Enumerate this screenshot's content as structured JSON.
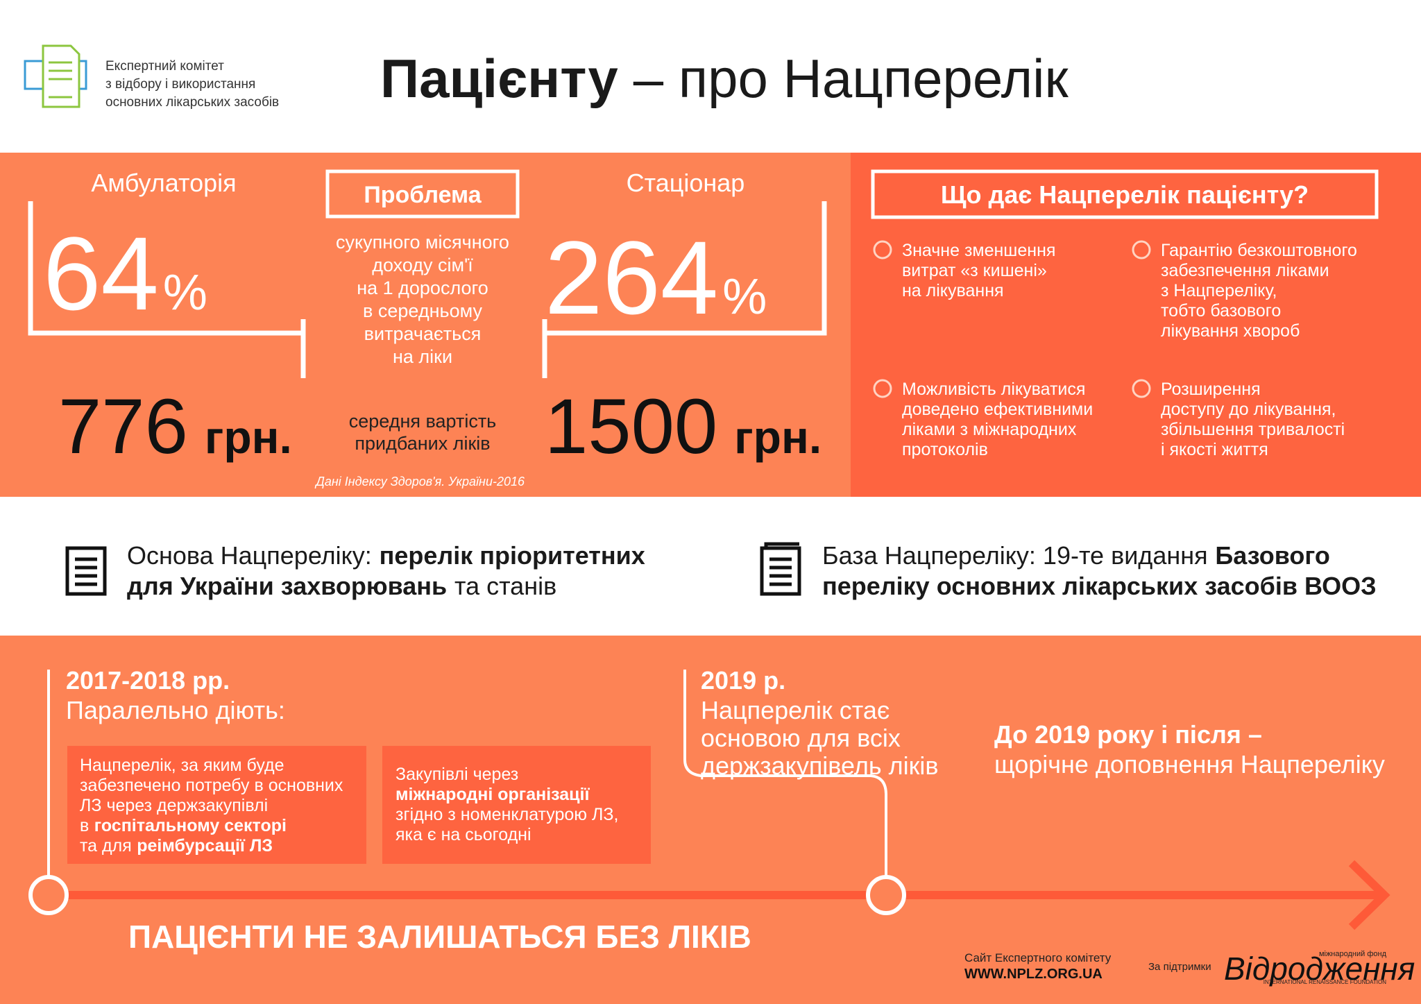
{
  "header": {
    "committee": [
      "Експертний комітет",
      "з відбору і використання",
      "основних лікарських засобів"
    ],
    "title_bold": "Пацієнту",
    "title_rest": "– про Нацперелік"
  },
  "stats": {
    "ambulatory": {
      "label": "Амбулаторія",
      "percent": "64",
      "percent_sign": "%",
      "cost": "776",
      "currency": "грн."
    },
    "stationary": {
      "label": "Стаціонар",
      "percent": "264",
      "percent_sign": "%",
      "cost": "1500",
      "currency": "грн."
    },
    "problem_title": "Проблема",
    "problem_text": [
      "сукупного місячного",
      "доходу сім'ї",
      "на 1 дорослого",
      "в середньому",
      "витрачається",
      "на ліки"
    ],
    "cost_caption": [
      "середня вартість",
      "придбаних ліків"
    ],
    "source": "Дані Індексу Здоров'я. України-2016"
  },
  "benefits": {
    "title": "Що дає Нацперелік пацієнту?",
    "items": [
      [
        "Значне зменшення",
        "витрат «з кишені»",
        "на лікування"
      ],
      [
        "Гарантію безкоштовного",
        "забезпечення ліками",
        "з Нацпереліку,",
        "тобто базового",
        "лікування хвороб"
      ],
      [
        "Можливість лікуватися",
        "доведено ефективними",
        "ліками з міжнародних",
        "протоколів"
      ],
      [
        "Розширення",
        "доступу до лікування,",
        "збільшення тривалості",
        "і якості життя"
      ]
    ]
  },
  "basis": [
    {
      "lines": [
        [
          "Основа Нацпереліку:",
          "перелік пріоритетних"
        ],
        [
          "для України захворювань",
          "та станів"
        ]
      ]
    },
    {
      "lines": [
        [
          "База Нацпереліку: 19-те видання",
          "Базового"
        ],
        [
          "переліку основних лікарських засобів ВООЗ"
        ]
      ]
    }
  ],
  "timeline": {
    "period1": {
      "year": "2017-2018 рр.",
      "subtitle": "Паралельно діють:",
      "box1": [
        [
          "Нацперелік, за яким буде"
        ],
        [
          "забезпечено потребу в основних"
        ],
        [
          "ЛЗ через держзакупівлі"
        ],
        [
          "в",
          "госпітальному секторі"
        ],
        [
          "та для",
          "реімбурсації ЛЗ"
        ]
      ],
      "box2": [
        [
          "Закупівлі через"
        ],
        [
          "міжнародні організації"
        ],
        [
          "згідно з номенклатурою ЛЗ,"
        ],
        [
          "яка є на сьогодні"
        ]
      ]
    },
    "period2": {
      "year": "2019 р.",
      "lines": [
        "Нацперелік стає",
        "основою для всіх",
        "держзакупівель ліків"
      ]
    },
    "period3": {
      "title": "До 2019 року і після –",
      "subtitle": "щорічне доповнення Нацпереліку"
    },
    "slogan": "ПАЦІЄНТИ НЕ ЗАЛИШАТЬСЯ БЕЗ ЛІКІВ"
  },
  "footer": {
    "site_label": "Сайт Експертного комітету",
    "site": "WWW.NPLZ.ORG.UA",
    "support": "За підтримки",
    "logo_top": "міжнародний фонд",
    "logo": "Відродження",
    "logo_bottom": "INTERNATIONAL RENAISSANCE FOUNDATION"
  }
}
